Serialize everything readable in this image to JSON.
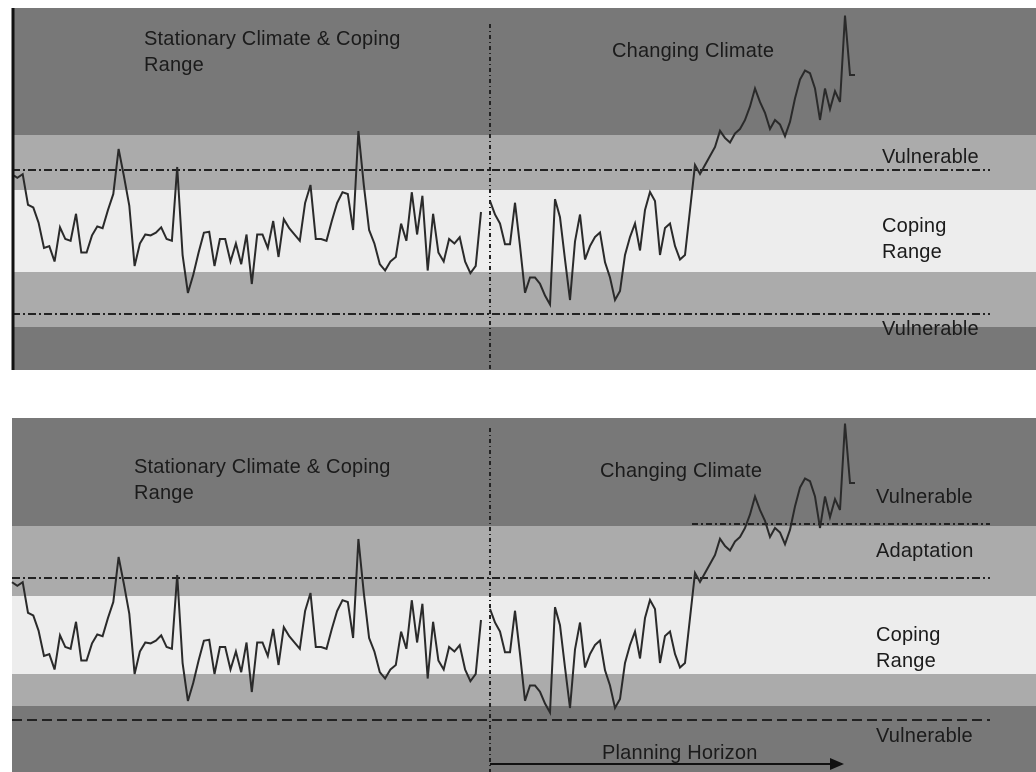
{
  "panels": [
    {
      "section_left": "Stationary Climate & Coping Range",
      "section_right": "Changing Climate",
      "zones": [
        "Vulnerable",
        "Coping Range",
        "Vulnerable"
      ]
    },
    {
      "section_left": "Stationary Climate & Coping Range",
      "section_right": "Changing Climate",
      "zones": [
        "Vulnerable",
        "Adaptation",
        "Coping Range",
        "Vulnerable"
      ],
      "planning_horizon": "Planning Horizon"
    }
  ],
  "colors": {
    "vulnerable": "#787878",
    "band": "#ababab",
    "coping": "#ededed",
    "series": "#2a2a2a"
  },
  "series": {
    "stationary": [
      62,
      58,
      62,
      28,
      25,
      8,
      -20,
      -18,
      -35,
      3,
      -10,
      -12,
      18,
      -25,
      -25,
      -6,
      4,
      2,
      22,
      40,
      90,
      60,
      27,
      -40,
      -15,
      -5,
      -6,
      -3,
      3,
      -10,
      -12,
      70,
      -28,
      -70,
      -50,
      -25,
      -3,
      -2,
      -40,
      -10,
      -10,
      -35,
      -15,
      -38,
      -5,
      -60,
      -5,
      -5,
      -20,
      10,
      -30,
      12,
      2,
      -5,
      -12,
      30,
      50,
      -10,
      -10,
      -12,
      10,
      30,
      42,
      40,
      0,
      110,
      50,
      0,
      -15,
      -38,
      -45,
      -35,
      -30,
      7,
      -12,
      42,
      -5,
      38,
      -45,
      18,
      -25,
      -35,
      -10,
      -15,
      -8,
      -35,
      -48,
      -40,
      20
    ]
  }
}
